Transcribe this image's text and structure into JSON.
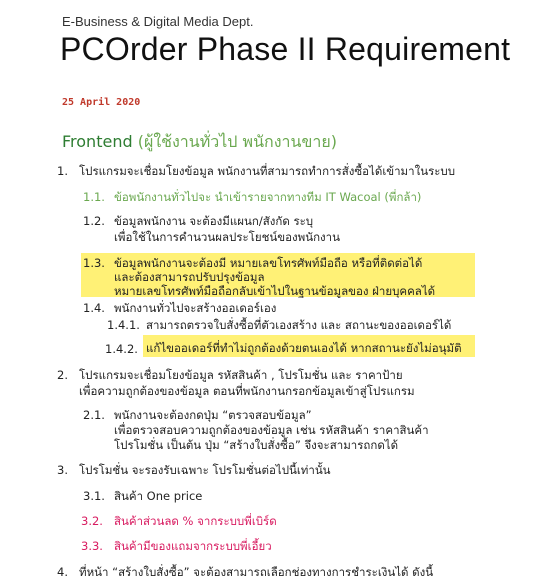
{
  "header": {
    "department": "E-Business & Digital Media Dept.",
    "title": "PCOrder Phase II Requirement",
    "date": "25 April 2020"
  },
  "section": {
    "name": "Frontend",
    "subtitle": "(ผู้ใช้งานทั่วไป พนักงานขาย)"
  },
  "items": [
    {
      "num": "1.",
      "text": "โปรแกรมจะเชื่อมโยงข้อมูล พนักงานที่สามารถทำการสั่งซื้อได้เข้ามาในระบบ"
    },
    {
      "num": "1.1.",
      "text": "ข้อพนักงานทั่วไปจะ นำเข้ารายจากทางทีม IT Wacoal (พี่กล้า)"
    },
    {
      "num": "1.2.",
      "line1": "ข้อมูลพนักงาน จะต้องมีแผนก/สังกัด ระบุ",
      "line2": "เพื่อใช้ในการคำนวนผลประโยชน์ของพนักงาน"
    },
    {
      "num": "1.3.",
      "line1": "ข้อมูลพนักงานจะต้องมี หมายเลขโทรศัพท์มือถือ หรือที่ติดต่อได้",
      "line2": "และต้องสามารถปรับปรุงข้อมูล",
      "line3": "หมายเลขโทรศัพท์มือถือกลับเข้าไปในฐานข้อมูลของ ฝ่ายบุคคลได้"
    },
    {
      "num": "1.4.",
      "text": "พนักงานทั่วไปจะสร้างออเดอร์เอง"
    },
    {
      "num": "1.4.1.",
      "text": "สามารถตรวจใบสั่งซื้อที่ตัวเองสร้าง และ สถานะของออเดอร์ได้"
    },
    {
      "num": "1.4.2.",
      "text": "แก้ไขออเดอร์ที่ทำไม่ถูกต้องด้วยตนเองได้ หากสถานะยังไม่อนุมัติ"
    },
    {
      "num": "2.",
      "line1": "โปรแกรมจะเชื่อมโยงข้อมูล รหัสสินค้า , โปรโมชั่น และ ราคาป้าย",
      "line2": "เพื่อความถูกต้องของข้อมูล ตอนที่พนักงานกรอกข้อมูลเข้าสู่โปรแกรม"
    },
    {
      "num": "2.1.",
      "line1": "พนักงานจะต้องกดปุ่ม “ตรวจสอบข้อมูล”",
      "line2": "เพื่อตรวจสอบความถูกต้องของข้อมูล เช่น รหัสสินค้า ราคาสินค้า",
      "line3": "โปรโมชั่น เป็นต้น ปุ่ม “สร้างใบสั่งซื้อ” จึงจะสามารถกดได้"
    },
    {
      "num": "3.",
      "text": "โปรโมชั่น จะรองรับเฉพาะ โปรโมชั่นต่อไปนี้เท่านั้น"
    },
    {
      "num": "3.1.",
      "text": "สินค้า One price"
    },
    {
      "num": "3.2.",
      "text": "สินค้าส่วนลด % จากระบบพี่เบิร์ด"
    },
    {
      "num": "3.3.",
      "text": "สินค้ามีของแถมจากระบบพี่เอี้ยว"
    },
    {
      "num": "4.",
      "text": "ที่หน้า “สร้างใบสั่งซื้อ” จะต้องสามารถเลือกช่องทางการชำระเงินได้ ดังนี้"
    }
  ],
  "colors": {
    "highlight": "#fff176",
    "green_item": "#6aa84f",
    "magenta_item": "#d81b60",
    "date": "#c0392b"
  }
}
